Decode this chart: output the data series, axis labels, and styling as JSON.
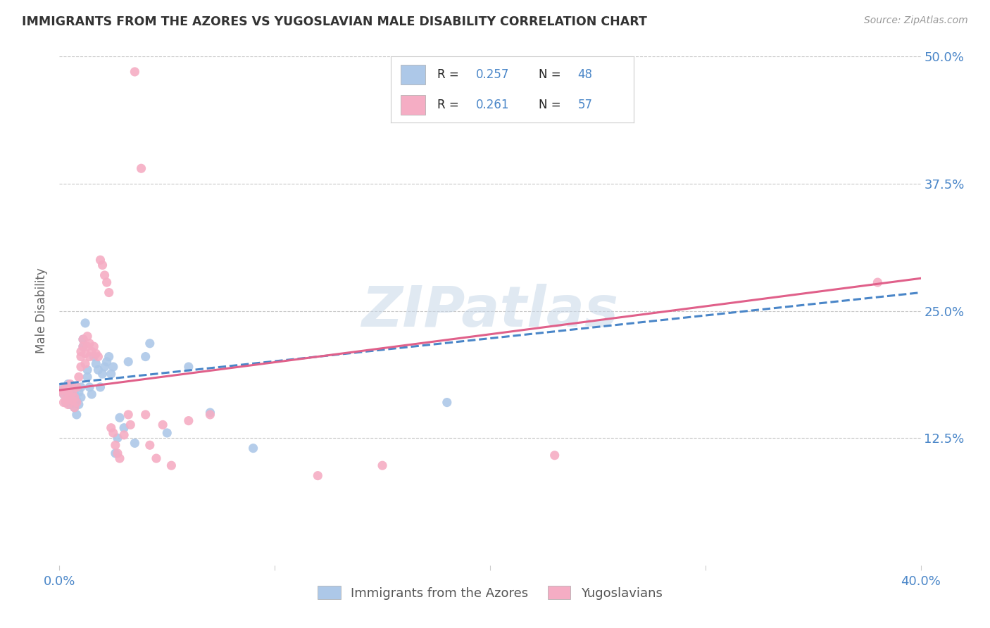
{
  "title": "IMMIGRANTS FROM THE AZORES VS YUGOSLAVIAN MALE DISABILITY CORRELATION CHART",
  "source": "Source: ZipAtlas.com",
  "ylabel": "Male Disability",
  "xlim": [
    0.0,
    0.4
  ],
  "ylim": [
    0.0,
    0.5
  ],
  "xtick_vals": [
    0.0,
    0.1,
    0.2,
    0.3,
    0.4
  ],
  "xticklabels": [
    "0.0%",
    "",
    "",
    "",
    "40.0%"
  ],
  "ytick_vals": [
    0.125,
    0.25,
    0.375,
    0.5
  ],
  "yticklabels": [
    "12.5%",
    "25.0%",
    "37.5%",
    "50.0%"
  ],
  "watermark": "ZIPatlas",
  "legend_labels": [
    "Immigrants from the Azores",
    "Yugoslavians"
  ],
  "azores_color": "#adc8e8",
  "yugoslav_color": "#f5adc4",
  "azores_line_color": "#4a86c8",
  "yugoslav_line_color": "#e0608a",
  "text_color_blue": "#4a86c8",
  "text_color_dark": "#222222",
  "azores_points": [
    [
      0.001,
      0.175
    ],
    [
      0.002,
      0.168
    ],
    [
      0.003,
      0.172
    ],
    [
      0.003,
      0.16
    ],
    [
      0.004,
      0.178
    ],
    [
      0.004,
      0.165
    ],
    [
      0.005,
      0.17
    ],
    [
      0.005,
      0.158
    ],
    [
      0.006,
      0.175
    ],
    [
      0.006,
      0.162
    ],
    [
      0.007,
      0.155
    ],
    [
      0.007,
      0.168
    ],
    [
      0.008,
      0.162
    ],
    [
      0.008,
      0.148
    ],
    [
      0.009,
      0.17
    ],
    [
      0.009,
      0.158
    ],
    [
      0.01,
      0.165
    ],
    [
      0.01,
      0.175
    ],
    [
      0.011,
      0.222
    ],
    [
      0.011,
      0.215
    ],
    [
      0.012,
      0.238
    ],
    [
      0.013,
      0.192
    ],
    [
      0.013,
      0.185
    ],
    [
      0.014,
      0.175
    ],
    [
      0.015,
      0.168
    ],
    [
      0.016,
      0.205
    ],
    [
      0.017,
      0.198
    ],
    [
      0.018,
      0.192
    ],
    [
      0.019,
      0.175
    ],
    [
      0.02,
      0.188
    ],
    [
      0.021,
      0.195
    ],
    [
      0.022,
      0.2
    ],
    [
      0.023,
      0.205
    ],
    [
      0.024,
      0.188
    ],
    [
      0.025,
      0.195
    ],
    [
      0.026,
      0.11
    ],
    [
      0.027,
      0.125
    ],
    [
      0.028,
      0.145
    ],
    [
      0.03,
      0.135
    ],
    [
      0.032,
      0.2
    ],
    [
      0.035,
      0.12
    ],
    [
      0.04,
      0.205
    ],
    [
      0.042,
      0.218
    ],
    [
      0.05,
      0.13
    ],
    [
      0.06,
      0.195
    ],
    [
      0.07,
      0.15
    ],
    [
      0.09,
      0.115
    ],
    [
      0.18,
      0.16
    ]
  ],
  "yugoslav_points": [
    [
      0.001,
      0.172
    ],
    [
      0.002,
      0.168
    ],
    [
      0.002,
      0.16
    ],
    [
      0.003,
      0.175
    ],
    [
      0.003,
      0.162
    ],
    [
      0.004,
      0.17
    ],
    [
      0.004,
      0.158
    ],
    [
      0.005,
      0.165
    ],
    [
      0.005,
      0.178
    ],
    [
      0.006,
      0.162
    ],
    [
      0.006,
      0.17
    ],
    [
      0.007,
      0.165
    ],
    [
      0.007,
      0.155
    ],
    [
      0.008,
      0.175
    ],
    [
      0.008,
      0.16
    ],
    [
      0.009,
      0.185
    ],
    [
      0.01,
      0.205
    ],
    [
      0.01,
      0.195
    ],
    [
      0.01,
      0.21
    ],
    [
      0.011,
      0.222
    ],
    [
      0.011,
      0.215
    ],
    [
      0.012,
      0.208
    ],
    [
      0.012,
      0.198
    ],
    [
      0.013,
      0.215
    ],
    [
      0.013,
      0.225
    ],
    [
      0.014,
      0.218
    ],
    [
      0.014,
      0.205
    ],
    [
      0.015,
      0.21
    ],
    [
      0.016,
      0.215
    ],
    [
      0.017,
      0.208
    ],
    [
      0.018,
      0.205
    ],
    [
      0.019,
      0.3
    ],
    [
      0.02,
      0.295
    ],
    [
      0.021,
      0.285
    ],
    [
      0.022,
      0.278
    ],
    [
      0.023,
      0.268
    ],
    [
      0.024,
      0.135
    ],
    [
      0.025,
      0.13
    ],
    [
      0.026,
      0.118
    ],
    [
      0.027,
      0.11
    ],
    [
      0.028,
      0.105
    ],
    [
      0.03,
      0.128
    ],
    [
      0.032,
      0.148
    ],
    [
      0.033,
      0.138
    ],
    [
      0.035,
      0.485
    ],
    [
      0.038,
      0.39
    ],
    [
      0.04,
      0.148
    ],
    [
      0.042,
      0.118
    ],
    [
      0.045,
      0.105
    ],
    [
      0.048,
      0.138
    ],
    [
      0.052,
      0.098
    ],
    [
      0.06,
      0.142
    ],
    [
      0.07,
      0.148
    ],
    [
      0.12,
      0.088
    ],
    [
      0.15,
      0.098
    ],
    [
      0.23,
      0.108
    ],
    [
      0.38,
      0.278
    ]
  ]
}
